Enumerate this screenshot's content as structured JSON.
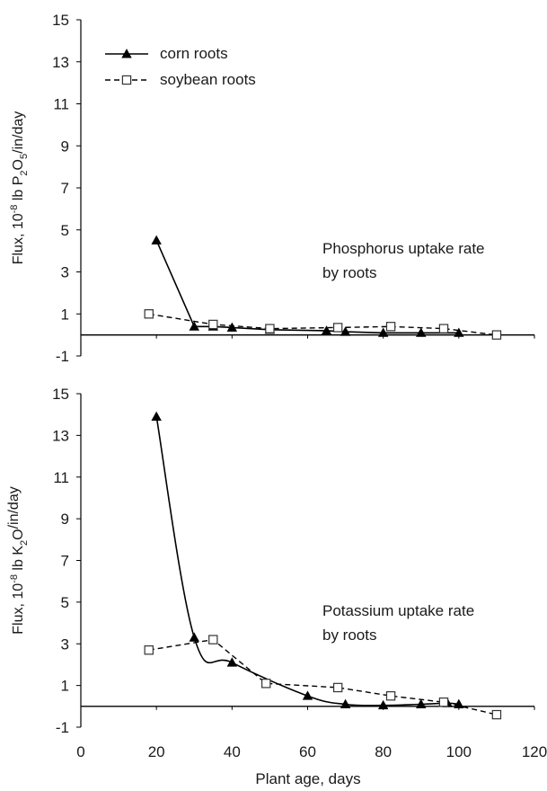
{
  "chart_data": [
    {
      "type": "line",
      "ylabel": {
        "prefix": "Flux, 10",
        "sup": "-8",
        "mid": " lb P",
        "sub1": "2",
        "mid2": "O",
        "sub2": "5",
        "suffix": "/in/day"
      },
      "ylim": [
        -1,
        15
      ],
      "yticks": [
        "15",
        "13",
        "11",
        "9",
        "7",
        "5",
        "3",
        "1",
        "-1"
      ],
      "xlim": [
        0,
        120
      ],
      "annotation": [
        "Phosphorus uptake rate",
        "by roots"
      ],
      "legend": {
        "placement": "top-left",
        "entries": [
          "corn roots",
          "soybean roots"
        ]
      },
      "series": [
        {
          "name": "corn roots",
          "marker": "filled-triangle",
          "line": "solid",
          "x": [
            20,
            30,
            35,
            40,
            50,
            65,
            70,
            80,
            90,
            100
          ],
          "y": [
            4.5,
            0.4,
            0.4,
            0.35,
            0.25,
            0.2,
            0.15,
            0.1,
            0.1,
            0.1
          ]
        },
        {
          "name": "soybean roots",
          "marker": "open-square",
          "line": "dashed",
          "x": [
            18,
            35,
            50,
            68,
            82,
            96,
            110
          ],
          "y": [
            1.0,
            0.5,
            0.3,
            0.35,
            0.4,
            0.3,
            0.0
          ]
        }
      ]
    },
    {
      "type": "line",
      "ylabel": {
        "prefix": "Flux, 10",
        "sup": "-8",
        "mid": " lb K",
        "sub1": "2",
        "mid2": "O",
        "sub2": "",
        "suffix": "/in/day"
      },
      "ylim": [
        -1,
        15
      ],
      "yticks": [
        "15",
        "13",
        "11",
        "9",
        "7",
        "5",
        "3",
        "1",
        "-1"
      ],
      "xlim": [
        0,
        120
      ],
      "xticks": [
        "0",
        "20",
        "40",
        "60",
        "80",
        "100",
        "120"
      ],
      "xlabel": "Plant age, days",
      "annotation": [
        "Potassium uptake rate",
        "by roots"
      ],
      "series": [
        {
          "name": "corn roots",
          "marker": "filled-triangle",
          "line": "solid",
          "x": [
            20,
            30,
            40,
            60,
            70,
            80,
            90,
            97,
            100
          ],
          "y": [
            13.9,
            3.3,
            2.1,
            0.5,
            0.1,
            0.05,
            0.1,
            0.15,
            0.1
          ]
        },
        {
          "name": "soybean roots",
          "marker": "open-square",
          "line": "dashed",
          "x": [
            18,
            35,
            49,
            68,
            82,
            96,
            110
          ],
          "y": [
            2.7,
            3.2,
            1.1,
            0.9,
            0.5,
            0.2,
            -0.4
          ]
        }
      ]
    }
  ]
}
